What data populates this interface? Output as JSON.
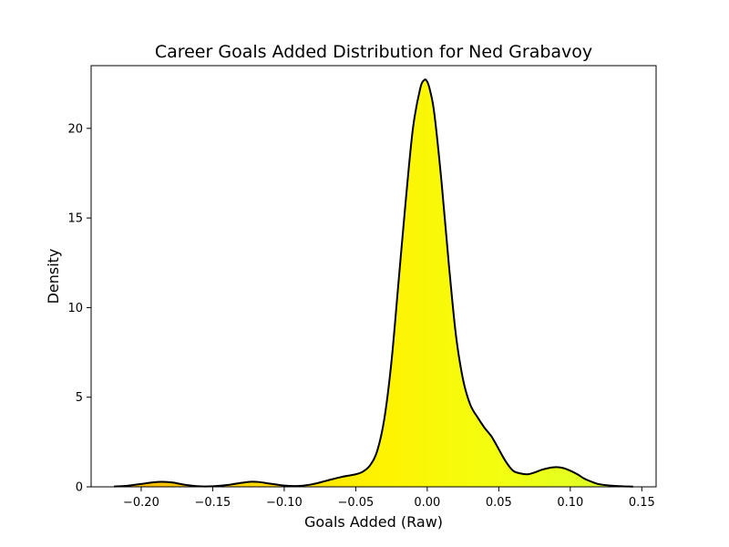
{
  "chart_data": {
    "type": "area",
    "title": "Career Goals Added Distribution for Ned Grabavoy",
    "xlabel": "Goals Added (Raw)",
    "ylabel": "Density",
    "xlim": [
      -0.235,
      0.16
    ],
    "ylim": [
      0,
      23.5
    ],
    "grid": false,
    "legend": "none",
    "x_ticks": [
      -0.2,
      -0.15,
      -0.1,
      -0.05,
      0.0,
      0.05,
      0.1,
      0.15
    ],
    "x_tick_labels": [
      "−0.20",
      "−0.15",
      "−0.10",
      "−0.05",
      "0.00",
      "0.05",
      "0.10",
      "0.15"
    ],
    "y_ticks": [
      0,
      5,
      10,
      15,
      20
    ],
    "y_tick_labels": [
      "0",
      "5",
      "10",
      "15",
      "20"
    ],
    "fill_gradient": [
      "#f7b500",
      "#ffd500",
      "#fff200",
      "#f2ff10",
      "#d8ff30"
    ],
    "line_color": "#000000",
    "series": [
      {
        "x": [
          -0.219,
          -0.21,
          -0.2,
          -0.192,
          -0.185,
          -0.178,
          -0.17,
          -0.16,
          -0.15,
          -0.14,
          -0.13,
          -0.124,
          -0.118,
          -0.11,
          -0.1,
          -0.09,
          -0.08,
          -0.07,
          -0.06,
          -0.05,
          -0.045,
          -0.04,
          -0.035,
          -0.03,
          -0.025,
          -0.02,
          -0.015,
          -0.01,
          -0.005,
          -0.002,
          0.0,
          0.002,
          0.005,
          0.01,
          0.015,
          0.02,
          0.025,
          0.03,
          0.035,
          0.04,
          0.045,
          0.05,
          0.055,
          0.06,
          0.065,
          0.07,
          0.075,
          0.08,
          0.085,
          0.09,
          0.095,
          0.1,
          0.105,
          0.11,
          0.115,
          0.12,
          0.13,
          0.144
        ],
        "y": [
          0.02,
          0.06,
          0.16,
          0.25,
          0.28,
          0.24,
          0.12,
          0.03,
          0.03,
          0.1,
          0.22,
          0.28,
          0.27,
          0.18,
          0.07,
          0.05,
          0.15,
          0.35,
          0.55,
          0.7,
          0.85,
          1.2,
          2.0,
          3.8,
          7.0,
          11.5,
          16.0,
          20.0,
          22.2,
          22.7,
          22.6,
          22.1,
          20.8,
          17.0,
          12.5,
          8.5,
          6.0,
          4.6,
          3.9,
          3.3,
          2.8,
          2.1,
          1.4,
          0.9,
          0.75,
          0.7,
          0.8,
          0.95,
          1.05,
          1.1,
          1.05,
          0.9,
          0.7,
          0.45,
          0.28,
          0.15,
          0.06,
          0.01
        ]
      }
    ]
  }
}
